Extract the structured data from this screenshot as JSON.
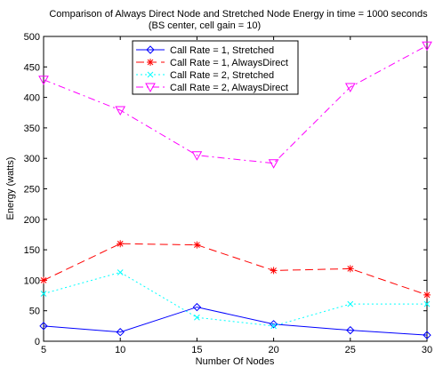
{
  "chart_data": {
    "type": "line",
    "title": "Comparison of Always Direct Node and Stretched Node Energy in time = 1000 seconds",
    "subtitle": "(BS center, cell gain = 10)",
    "xlabel": "Number Of Nodes",
    "ylabel": "Energy (watts)",
    "xlim": [
      5,
      30
    ],
    "ylim": [
      0,
      500
    ],
    "xticks": [
      5,
      10,
      15,
      20,
      25,
      30
    ],
    "yticks": [
      0,
      50,
      100,
      150,
      200,
      250,
      300,
      350,
      400,
      450,
      500
    ],
    "grid": false,
    "legend_position": "top-center",
    "x": [
      5,
      10,
      15,
      20,
      25,
      30
    ],
    "series": [
      {
        "name": "Call Rate = 1, Stretched",
        "color": "#0000ff",
        "dash": "solid",
        "marker": "diamond",
        "values": [
          25,
          15,
          56,
          28,
          18,
          10
        ]
      },
      {
        "name": "Call Rate = 1, AlwaysDirect",
        "color": "#ff0000",
        "dash": "dashed",
        "marker": "asterisk",
        "values": [
          100,
          160,
          158,
          116,
          119,
          76
        ]
      },
      {
        "name": "Call Rate = 2, Stretched",
        "color": "#00ffff",
        "dash": "dotted",
        "marker": "x",
        "values": [
          78,
          113,
          39,
          25,
          61,
          61
        ]
      },
      {
        "name": "Call Rate = 2, AlwaysDirect",
        "color": "#ff00ff",
        "dash": "dashdot",
        "marker": "triangle-down",
        "values": [
          429,
          379,
          305,
          292,
          417,
          485
        ]
      }
    ]
  }
}
